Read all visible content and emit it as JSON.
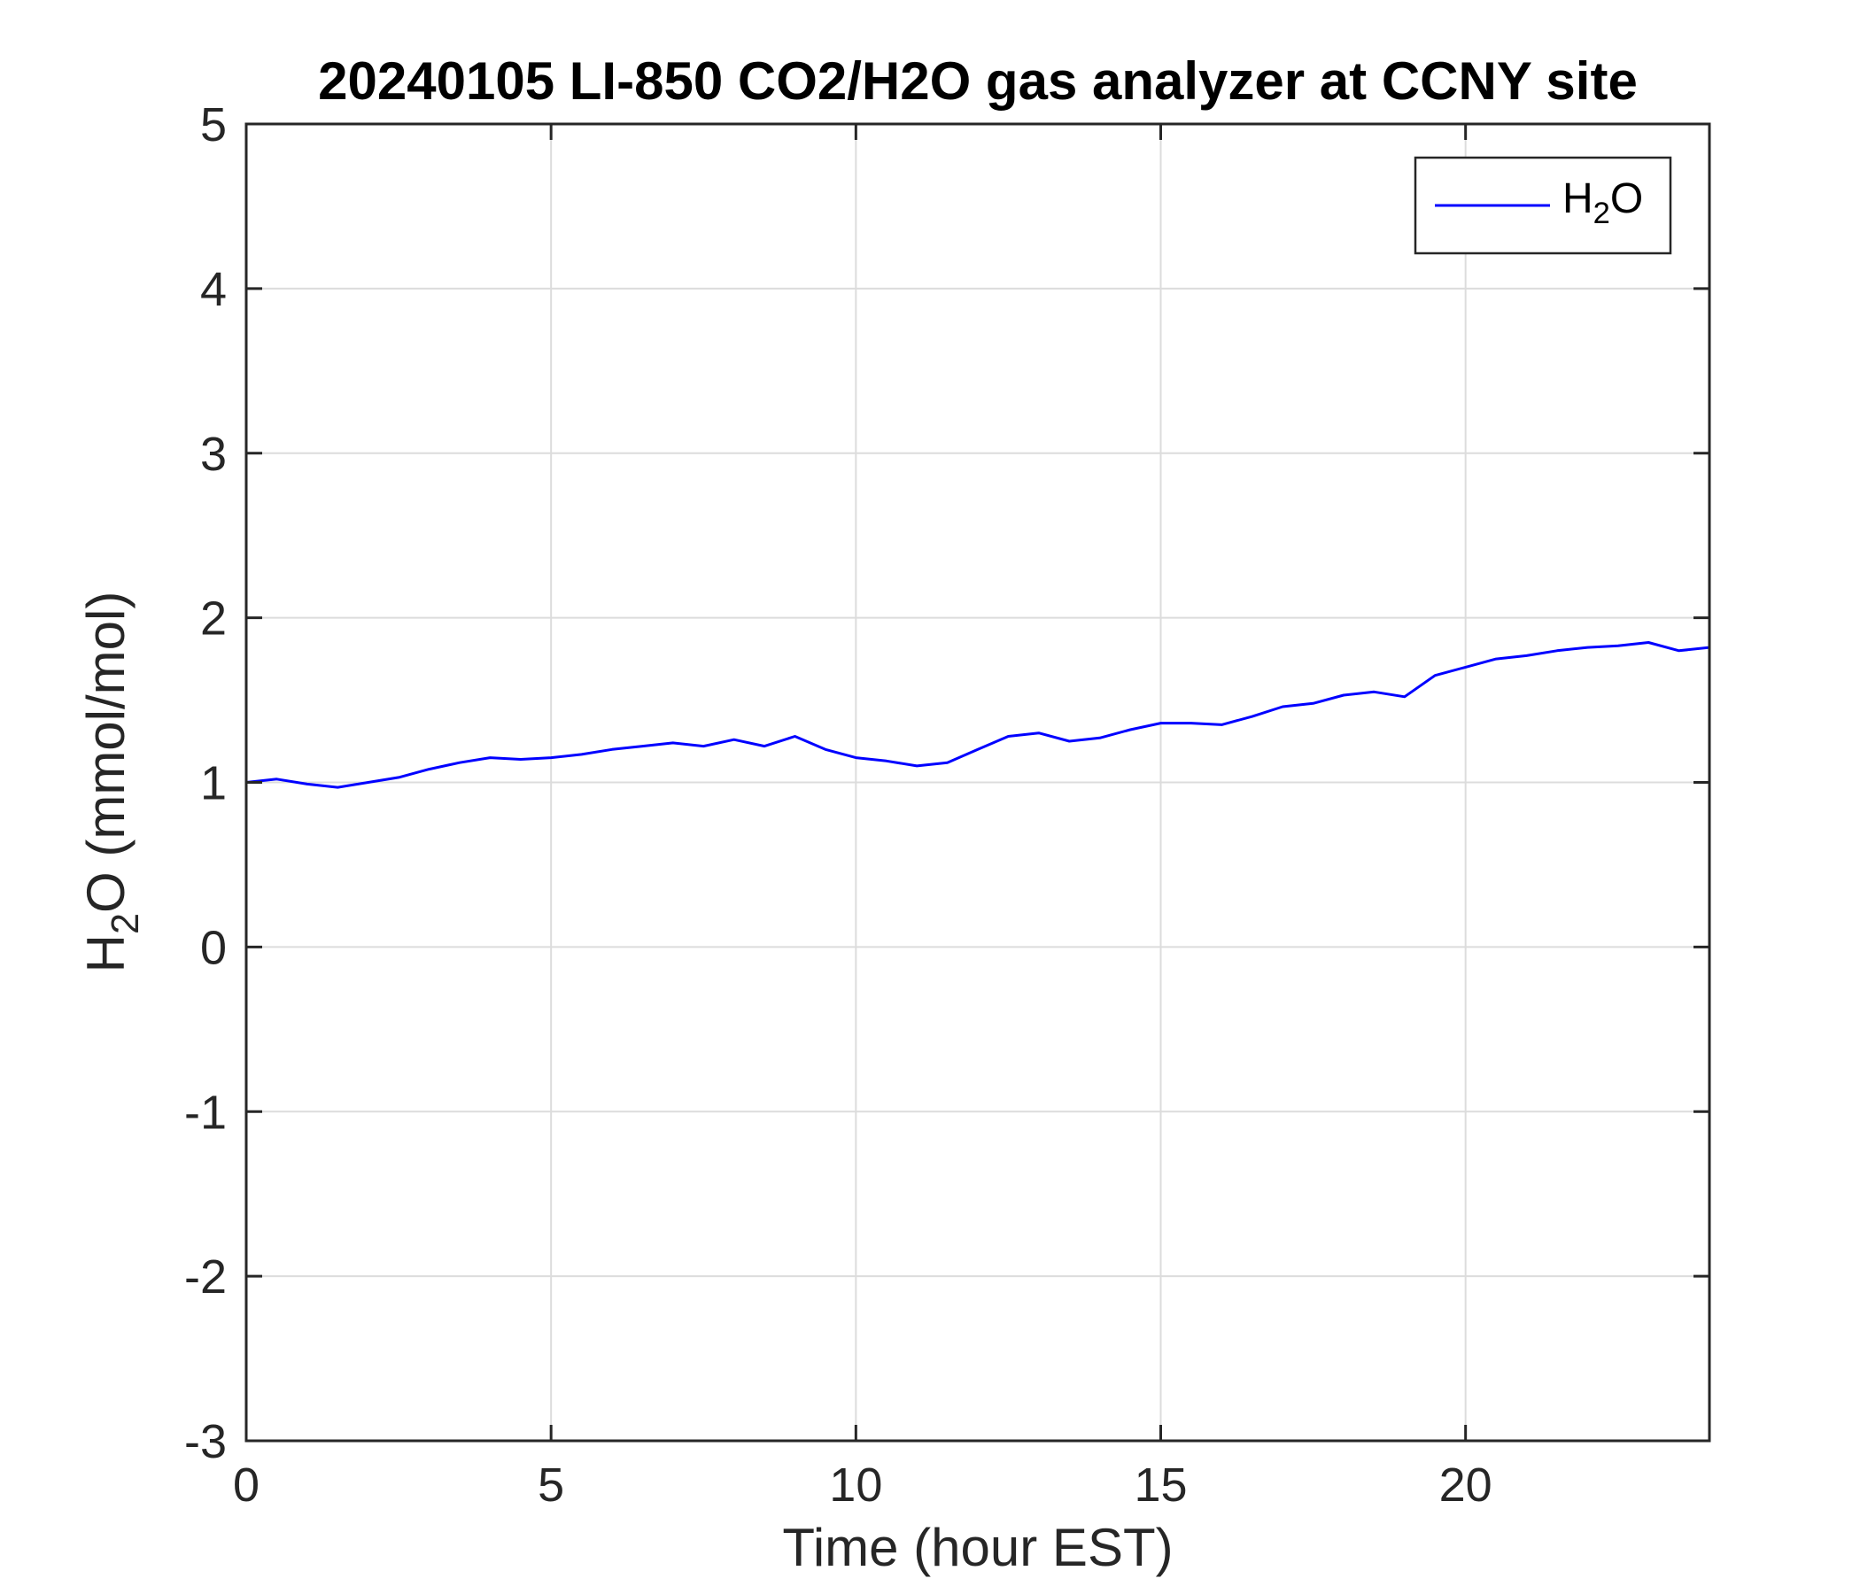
{
  "chart_data": {
    "type": "line",
    "title": "20240105 LI-850 CO2/H2O gas analyzer at CCNY site",
    "xlabel": "Time (hour EST)",
    "ylabel": "H2O (mmol/mol)",
    "xlim": [
      0,
      24
    ],
    "ylim": [
      -3,
      5
    ],
    "xticks": [
      0,
      5,
      10,
      15,
      20
    ],
    "yticks": [
      -3,
      -2,
      -1,
      0,
      1,
      2,
      3,
      4,
      5
    ],
    "grid": true,
    "legend": {
      "position": "top-right",
      "entries": [
        "H2O"
      ]
    },
    "series": [
      {
        "name": "H2O",
        "color": "#0000ff",
        "x": [
          0,
          0.5,
          1,
          1.5,
          2,
          2.5,
          3,
          3.5,
          4,
          4.5,
          5,
          5.5,
          6,
          6.5,
          7,
          7.5,
          8,
          8.5,
          9,
          9.5,
          10,
          10.5,
          11,
          11.5,
          12,
          12.5,
          13,
          13.5,
          14,
          14.5,
          15,
          15.5,
          16,
          16.5,
          17,
          17.5,
          18,
          18.5,
          19,
          19.5,
          20,
          20.5,
          21,
          21.5,
          22,
          22.5,
          23,
          23.5,
          24
        ],
        "y": [
          1.0,
          1.02,
          0.99,
          0.97,
          1.0,
          1.03,
          1.08,
          1.12,
          1.15,
          1.14,
          1.15,
          1.17,
          1.2,
          1.22,
          1.24,
          1.22,
          1.26,
          1.22,
          1.28,
          1.2,
          1.15,
          1.13,
          1.1,
          1.12,
          1.2,
          1.28,
          1.3,
          1.25,
          1.27,
          1.32,
          1.36,
          1.36,
          1.35,
          1.4,
          1.46,
          1.48,
          1.53,
          1.55,
          1.52,
          1.65,
          1.7,
          1.75,
          1.77,
          1.8,
          1.82,
          1.83,
          1.85,
          1.8,
          1.82
        ]
      }
    ]
  }
}
